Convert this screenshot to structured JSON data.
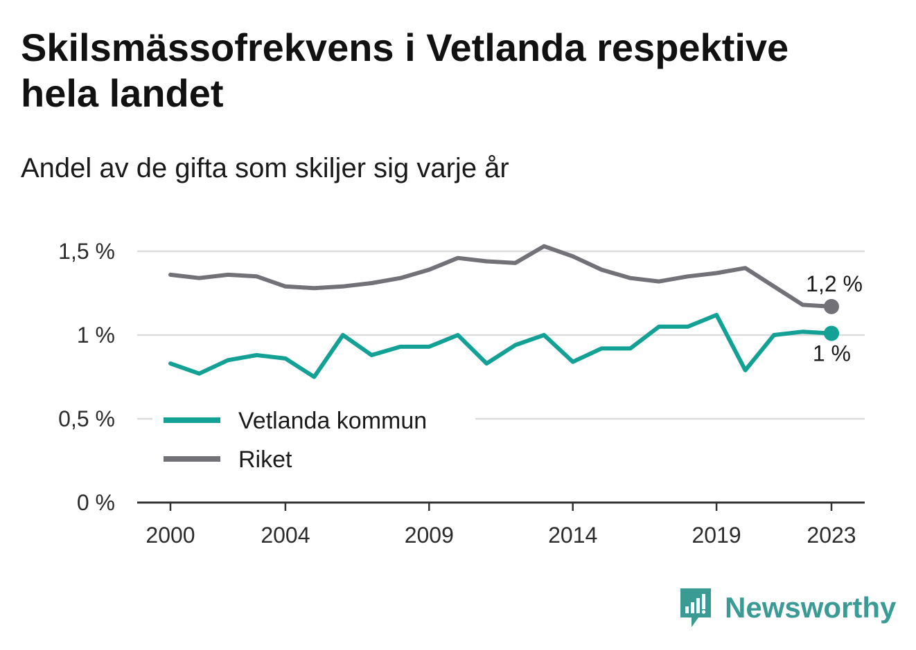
{
  "title": "Skilsmässofrekvens i Vetlanda respektive hela landet",
  "subtitle": "Andel av de gifta som skiljer sig varje år",
  "brand": {
    "name": "Newsworthy",
    "icon": "newsworthy-logo-icon",
    "color": "#3a9a94"
  },
  "chart_data": {
    "type": "line",
    "x": [
      2000,
      2001,
      2002,
      2003,
      2004,
      2005,
      2006,
      2007,
      2008,
      2009,
      2010,
      2011,
      2012,
      2013,
      2014,
      2015,
      2016,
      2017,
      2018,
      2019,
      2020,
      2021,
      2022,
      2023
    ],
    "x_ticks": [
      2000,
      2004,
      2009,
      2014,
      2019,
      2023
    ],
    "y_ticks": [
      {
        "value": 0,
        "label": "0 %"
      },
      {
        "value": 0.5,
        "label": "0,5 %"
      },
      {
        "value": 1,
        "label": "1 %"
      },
      {
        "value": 1.5,
        "label": "1,5 %"
      }
    ],
    "ylim": [
      0,
      1.5
    ],
    "grid": true,
    "legend_position": "bottom-left",
    "series": [
      {
        "name": "Vetlanda kommun",
        "color": "#13a196",
        "values": [
          0.83,
          0.77,
          0.85,
          0.88,
          0.86,
          0.75,
          1.0,
          0.88,
          0.93,
          0.93,
          1.0,
          0.83,
          0.94,
          1.0,
          0.84,
          0.92,
          0.92,
          1.05,
          1.05,
          1.12,
          0.79,
          1.0,
          1.02,
          1.01
        ],
        "end_label": "1 %"
      },
      {
        "name": "Riket",
        "color": "#727178",
        "values": [
          1.36,
          1.34,
          1.36,
          1.35,
          1.29,
          1.28,
          1.29,
          1.31,
          1.34,
          1.39,
          1.46,
          1.44,
          1.43,
          1.53,
          1.47,
          1.39,
          1.34,
          1.32,
          1.35,
          1.37,
          1.4,
          1.29,
          1.18,
          1.17
        ],
        "end_label": "1,2 %"
      }
    ]
  }
}
